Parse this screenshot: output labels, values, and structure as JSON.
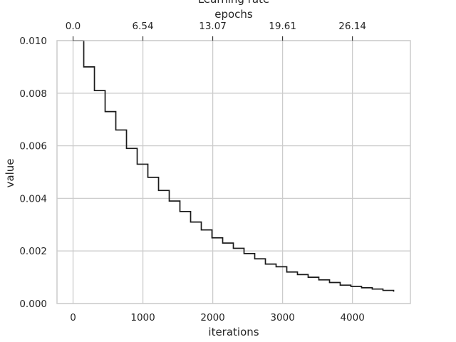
{
  "chart_data": {
    "type": "line",
    "title": "Learning rate",
    "xlabel": "iterations",
    "ylabel": "value",
    "secondary_xlabel": "epochs",
    "xlim": [
      -230,
      4830
    ],
    "ylim": [
      0,
      0.01
    ],
    "x_ticks": [
      0,
      1000,
      2000,
      3000,
      4000
    ],
    "x_tick_labels": [
      "0",
      "1000",
      "2000",
      "3000",
      "4000"
    ],
    "y_ticks": [
      0,
      0.002,
      0.004,
      0.006,
      0.008,
      0.01
    ],
    "y_tick_labels": [
      "0.000",
      "0.002",
      "0.004",
      "0.006",
      "0.008",
      "0.010"
    ],
    "secondary_x_ticks": [
      0,
      1000,
      2000,
      3000,
      4000
    ],
    "secondary_x_tick_labels": [
      "0.0",
      "6.54",
      "13.07",
      "19.61",
      "26.14"
    ],
    "grid": true,
    "line_color": "#1a1a1a",
    "series": [
      {
        "steps": [
          {
            "x": 0,
            "y": 0.01
          },
          {
            "x": 153,
            "y": 0.009
          },
          {
            "x": 306,
            "y": 0.0081
          },
          {
            "x": 459,
            "y": 0.0073
          },
          {
            "x": 612,
            "y": 0.0066
          },
          {
            "x": 765,
            "y": 0.0059
          },
          {
            "x": 918,
            "y": 0.0053
          },
          {
            "x": 1071,
            "y": 0.0048
          },
          {
            "x": 1224,
            "y": 0.0043
          },
          {
            "x": 1377,
            "y": 0.0039
          },
          {
            "x": 1530,
            "y": 0.0035
          },
          {
            "x": 1683,
            "y": 0.0031
          },
          {
            "x": 1836,
            "y": 0.0028
          },
          {
            "x": 1989,
            "y": 0.0025
          },
          {
            "x": 2142,
            "y": 0.0023
          },
          {
            "x": 2295,
            "y": 0.0021
          },
          {
            "x": 2448,
            "y": 0.0019
          },
          {
            "x": 2601,
            "y": 0.0017
          },
          {
            "x": 2754,
            "y": 0.0015
          },
          {
            "x": 2907,
            "y": 0.0014
          },
          {
            "x": 3060,
            "y": 0.0012
          },
          {
            "x": 3213,
            "y": 0.0011
          },
          {
            "x": 3366,
            "y": 0.001
          },
          {
            "x": 3519,
            "y": 0.0009
          },
          {
            "x": 3672,
            "y": 0.0008
          },
          {
            "x": 3825,
            "y": 0.0007
          },
          {
            "x": 3978,
            "y": 0.00065
          },
          {
            "x": 4131,
            "y": 0.0006
          },
          {
            "x": 4284,
            "y": 0.00055
          },
          {
            "x": 4437,
            "y": 0.0005
          }
        ],
        "x_end": 4590,
        "y_end": 0.00045
      }
    ]
  }
}
